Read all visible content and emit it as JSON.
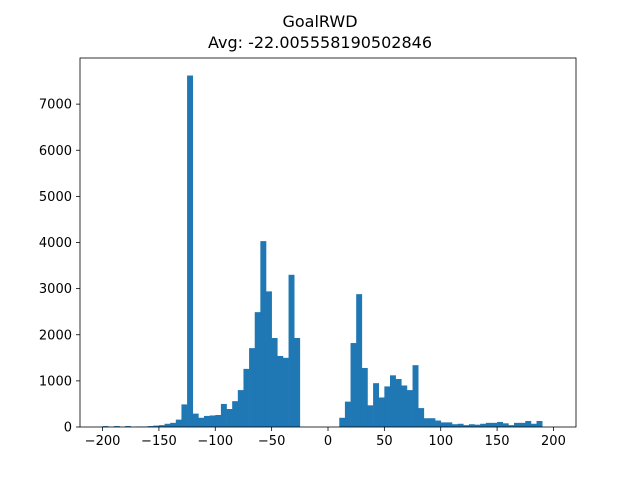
{
  "chart_data": {
    "type": "bar",
    "title": "GoalRWD",
    "subtitle": "Avg: -22.005558190502846",
    "xlabel": "",
    "ylabel": "",
    "xlim": [
      -220,
      220
    ],
    "ylim": [
      0,
      8000
    ],
    "x_ticks": [
      -200,
      -150,
      -100,
      -50,
      0,
      50,
      100,
      150,
      200
    ],
    "y_ticks": [
      0,
      1000,
      2000,
      3000,
      4000,
      5000,
      6000,
      7000
    ],
    "grid": false,
    "bar_color": "#1f77b4",
    "bin_width": 5,
    "bin_start": -200,
    "values": [
      20,
      0,
      20,
      0,
      20,
      0,
      10,
      10,
      20,
      30,
      40,
      70,
      90,
      160,
      490,
      7620,
      290,
      200,
      240,
      250,
      260,
      500,
      390,
      560,
      800,
      1260,
      1710,
      2490,
      4030,
      2940,
      1930,
      1540,
      1500,
      3300,
      1930,
      0,
      0,
      0,
      0,
      0,
      0,
      0,
      200,
      550,
      1820,
      2880,
      1280,
      470,
      950,
      640,
      880,
      1120,
      1040,
      900,
      800,
      1340,
      410,
      190,
      190,
      140,
      100,
      100,
      60,
      70,
      40,
      60,
      50,
      70,
      90,
      90,
      110,
      80,
      40,
      90,
      90,
      130,
      70,
      130
    ]
  }
}
